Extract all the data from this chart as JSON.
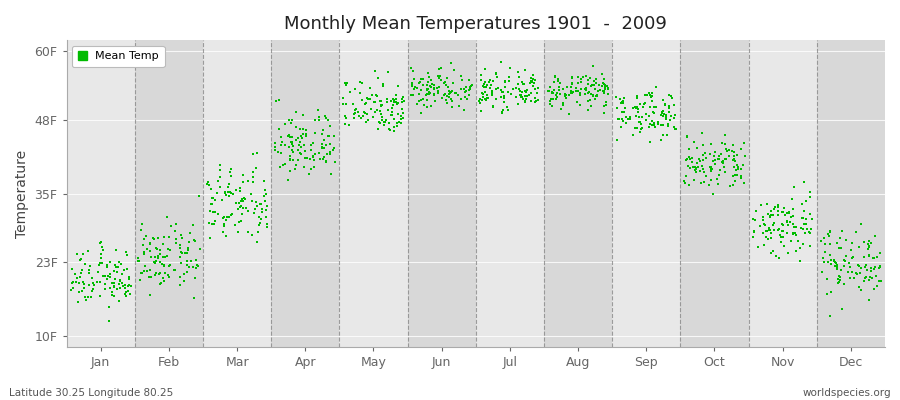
{
  "title": "Monthly Mean Temperatures 1901  -  2009",
  "ylabel": "Temperature",
  "yticks": [
    10,
    23,
    35,
    48,
    60
  ],
  "ytick_labels": [
    "10F",
    "23F",
    "35F",
    "48F",
    "60F"
  ],
  "ylim": [
    8,
    62
  ],
  "months": [
    "Jan",
    "Feb",
    "Mar",
    "Apr",
    "May",
    "Jun",
    "Jul",
    "Aug",
    "Sep",
    "Oct",
    "Nov",
    "Dec"
  ],
  "dot_color": "#00BB00",
  "background_color_light": "#e8e8e8",
  "background_color_dark": "#d8d8d8",
  "n_years": 109,
  "mean_temps_F": [
    20.0,
    23.5,
    33.0,
    43.5,
    50.5,
    53.5,
    53.0,
    53.0,
    49.0,
    40.0,
    29.5,
    23.0
  ],
  "std_temps_F": [
    2.5,
    2.8,
    3.5,
    3.0,
    2.5,
    1.8,
    1.5,
    1.5,
    2.0,
    2.5,
    3.0,
    3.0
  ],
  "footer_left": "Latitude 30.25 Longitude 80.25",
  "footer_right": "worldspecies.org",
  "legend_label": "Mean Temp"
}
